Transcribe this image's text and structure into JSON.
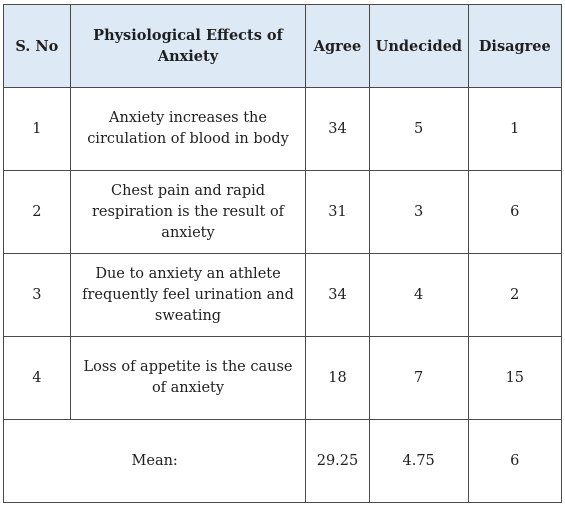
{
  "table": {
    "headers": {
      "sno": "S. No",
      "effect": "Physiological Effects of Anxiety",
      "agree": "Agree",
      "undecided": "Undecided",
      "disagree": "Disagree"
    },
    "rows": [
      {
        "sno": "1",
        "effect": "Anxiety increases the circulation of blood in body",
        "agree": "34",
        "undecided": "5",
        "disagree": "1"
      },
      {
        "sno": "2",
        "effect": "Chest pain and rapid respiration is the result of anxiety",
        "agree": "31",
        "undecided": "3",
        "disagree": "6"
      },
      {
        "sno": "3",
        "effect": "Due to anxiety an athlete frequently feel urination and sweating",
        "agree": "34",
        "undecided": "4",
        "disagree": "2"
      },
      {
        "sno": "4",
        "effect": "Loss of appetite is the cause of anxiety",
        "agree": "18",
        "undecided": "7",
        "disagree": "15"
      }
    ],
    "mean": {
      "label": "Mean:",
      "agree": "29.25",
      "undecided": "4.75",
      "disagree": "6"
    }
  },
  "colors": {
    "header_background": "#dde9f5",
    "border": "#4a4a4a"
  }
}
